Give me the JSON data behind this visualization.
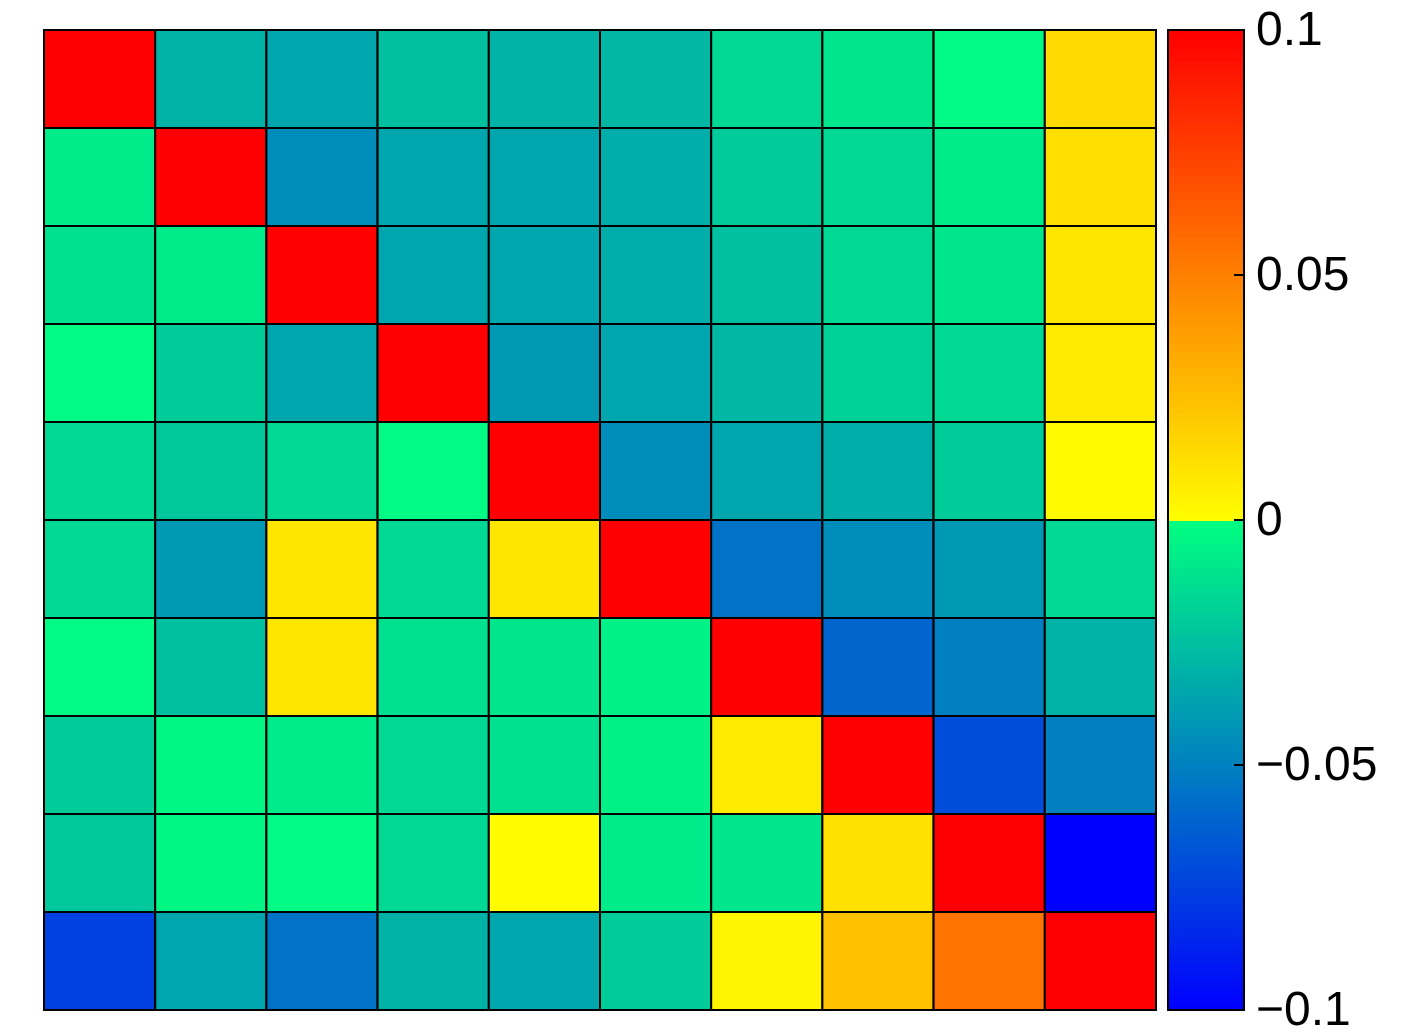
{
  "chart_data": {
    "type": "heatmap",
    "categories": [
      null,
      null,
      null,
      null,
      null,
      null,
      null,
      null,
      null,
      null
    ],
    "y_categories": [
      null,
      null,
      null,
      null,
      null,
      null,
      null,
      null,
      null,
      null
    ],
    "cells": [
      [
        0.1,
        -0.03,
        -0.035,
        -0.025,
        -0.03,
        -0.028,
        -0.015,
        -0.01,
        -0.002,
        0.015
      ],
      [
        -0.008,
        0.1,
        -0.045,
        -0.035,
        -0.035,
        -0.032,
        -0.02,
        -0.015,
        -0.008,
        0.013
      ],
      [
        -0.012,
        -0.008,
        0.1,
        -0.035,
        -0.035,
        -0.032,
        -0.025,
        -0.015,
        -0.01,
        0.01
      ],
      [
        -0.002,
        -0.02,
        -0.035,
        0.1,
        -0.04,
        -0.035,
        -0.028,
        -0.018,
        -0.015,
        0.008
      ],
      [
        -0.015,
        -0.022,
        -0.015,
        -0.002,
        0.1,
        -0.045,
        -0.035,
        -0.032,
        -0.02,
        0.002
      ],
      [
        -0.015,
        -0.04,
        0.01,
        -0.015,
        0.01,
        0.1,
        -0.055,
        -0.045,
        -0.04,
        -0.015
      ],
      [
        -0.002,
        -0.025,
        0.01,
        -0.012,
        -0.01,
        -0.005,
        0.1,
        -0.06,
        -0.05,
        -0.03
      ],
      [
        -0.02,
        -0.003,
        -0.008,
        -0.015,
        -0.012,
        -0.005,
        0.008,
        0.1,
        -0.07,
        -0.05
      ],
      [
        -0.022,
        -0.003,
        -0.002,
        -0.015,
        0.001,
        -0.008,
        -0.01,
        0.012,
        0.1,
        -0.1
      ],
      [
        -0.075,
        -0.035,
        -0.055,
        -0.03,
        -0.035,
        -0.02,
        0.004,
        0.025,
        0.055,
        0.1
      ]
    ],
    "clim": [
      -0.1,
      0.1
    ],
    "cticks": [
      {
        "value": -0.1,
        "label": "−0.1"
      },
      {
        "value": -0.05,
        "label": "−0.05"
      },
      0,
      0.05,
      0.1
    ]
  }
}
